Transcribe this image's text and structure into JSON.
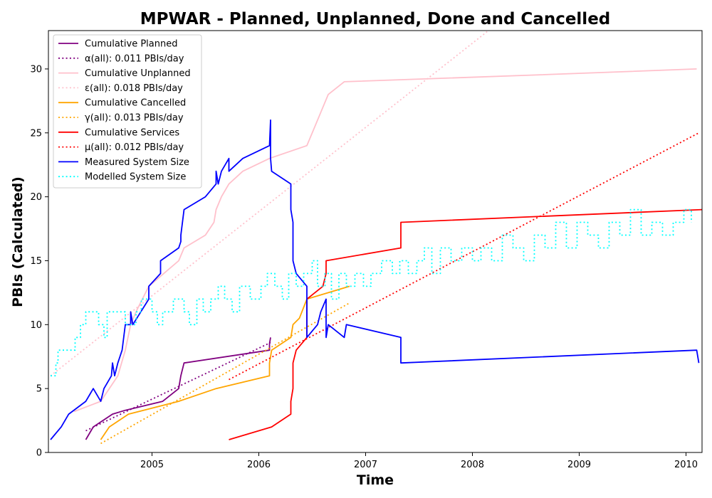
{
  "chart_data": {
    "type": "line",
    "title": "MPWAR - Planned, Unplanned, Done  and Cancelled",
    "xlabel": "Time",
    "ylabel": "PBIs (Calculated)",
    "xlim": [
      2004.03,
      2010.15
    ],
    "ylim": [
      0,
      33
    ],
    "xticks": [
      2005,
      2006,
      2007,
      2008,
      2009,
      2010
    ],
    "yticks": [
      0,
      5,
      10,
      15,
      20,
      25,
      30
    ],
    "grid": false,
    "legend_position": "top-left",
    "series": [
      {
        "name": "Cumulative Planned",
        "style": "solid",
        "color": "#800080",
        "x": [
          2004.38,
          2004.45,
          2004.63,
          2004.75,
          2005.1,
          2005.25,
          2005.27,
          2005.3,
          2006.1,
          2006.1,
          2006.11
        ],
        "y": [
          1,
          2,
          3,
          3.3,
          4,
          5,
          6,
          7,
          8,
          8.5,
          9
        ]
      },
      {
        "name": "α(all): 0.011 PBIs/day",
        "style": "dotted",
        "color": "#800080",
        "x": [
          2004.38,
          2006.11
        ],
        "y": [
          1.7,
          8.6
        ]
      },
      {
        "name": "Cumulative Unplanned",
        "style": "solid",
        "color": "#ffc0cb",
        "x": [
          2004.27,
          2004.52,
          2004.6,
          2004.68,
          2004.75,
          2004.8,
          2004.85,
          2004.97,
          2005.25,
          2005.3,
          2005.5,
          2005.58,
          2005.6,
          2005.65,
          2005.72,
          2005.85,
          2006.1,
          2006.45,
          2006.5,
          2006.55,
          2006.6,
          2006.65,
          2006.8,
          2008.5,
          2010.1
        ],
        "y": [
          3.2,
          4,
          5,
          6,
          8,
          10,
          11,
          13,
          15,
          16,
          17,
          18,
          19,
          20,
          21,
          22,
          23,
          24,
          25,
          26,
          27,
          28,
          29,
          29.5,
          30
        ]
      },
      {
        "name": "ε(all): 0.018 PBIs/day",
        "style": "dotted",
        "color": "#ffc0cb",
        "x": [
          2004.05,
          2008.15
        ],
        "y": [
          6,
          33
        ]
      },
      {
        "name": "Cumulative Cancelled",
        "style": "solid",
        "color": "#ffa500",
        "x": [
          2004.52,
          2004.6,
          2004.78,
          2005.25,
          2005.6,
          2006.1,
          2006.1,
          2006.12,
          2006.3,
          2006.32,
          2006.38,
          2006.45,
          2006.85
        ],
        "y": [
          1,
          2,
          3,
          4,
          5,
          6,
          7,
          8,
          9,
          10,
          10.5,
          12,
          13
        ]
      },
      {
        "name": "γ(all): 0.013 PBIs/day",
        "style": "dotted",
        "color": "#ffa500",
        "x": [
          2004.52,
          2006.85
        ],
        "y": [
          0.7,
          11.7
        ]
      },
      {
        "name": "Cumulative Services",
        "style": "solid",
        "color": "#ff0000",
        "x": [
          2005.72,
          2006.12,
          2006.3,
          2006.3,
          2006.32,
          2006.32,
          2006.35,
          2006.45,
          2006.45,
          2006.6,
          2006.63,
          2006.63,
          2007.33,
          2007.33,
          2010.15
        ],
        "y": [
          1,
          2,
          3,
          4,
          5,
          7,
          8,
          9,
          12,
          13,
          14,
          15,
          16,
          18,
          19
        ]
      },
      {
        "name": "μ(all): 0.012 PBIs/day",
        "style": "dotted",
        "color": "#ff0000",
        "x": [
          2005.72,
          2010.12
        ],
        "y": [
          5.7,
          25
        ]
      },
      {
        "name": "Measured System Size",
        "style": "solid",
        "color": "#0000ff",
        "x": [
          2004.05,
          2004.15,
          2004.22,
          2004.38,
          2004.45,
          2004.52,
          2004.55,
          2004.62,
          2004.63,
          2004.65,
          2004.68,
          2004.72,
          2004.75,
          2004.8,
          2004.8,
          2004.82,
          2004.97,
          2004.97,
          2005.08,
          2005.08,
          2005.25,
          2005.27,
          2005.27,
          2005.3,
          2005.5,
          2005.6,
          2005.6,
          2005.62,
          2005.65,
          2005.72,
          2005.72,
          2005.85,
          2006.1,
          2006.11,
          2006.11,
          2006.12,
          2006.3,
          2006.3,
          2006.32,
          2006.32,
          2006.35,
          2006.45,
          2006.45,
          2006.55,
          2006.58,
          2006.63,
          2006.63,
          2006.65,
          2006.8,
          2006.82,
          2007.33,
          2007.33,
          2010.1,
          2010.12
        ],
        "y": [
          1,
          2,
          3,
          4,
          5,
          4,
          5,
          6,
          7,
          6,
          7,
          8,
          10,
          10,
          11,
          10,
          12,
          13,
          14,
          15,
          16,
          16.5,
          17,
          19,
          20,
          21,
          22,
          21,
          22,
          23,
          22,
          23,
          24,
          26,
          23,
          22,
          21,
          19,
          18,
          15,
          14,
          13,
          9,
          10,
          11,
          12,
          9,
          10,
          9,
          10,
          9,
          7,
          8,
          7
        ]
      },
      {
        "name": "Modelled System Size",
        "style": "dotted",
        "color": "#00ffff",
        "step": true,
        "x": [
          2004.05,
          2004.1,
          2004.12,
          2004.28,
          2004.33,
          2004.38,
          2004.5,
          2004.55,
          2004.58,
          2004.75,
          2004.85,
          2004.9,
          2005.0,
          2005.05,
          2005.1,
          2005.2,
          2005.3,
          2005.35,
          2005.42,
          2005.48,
          2005.55,
          2005.62,
          2005.68,
          2005.75,
          2005.82,
          2005.92,
          2006.02,
          2006.08,
          2006.15,
          2006.22,
          2006.28,
          2006.35,
          2006.42,
          2006.5,
          2006.55,
          2006.62,
          2006.68,
          2006.75,
          2006.82,
          2006.9,
          2006.98,
          2007.05,
          2007.15,
          2007.25,
          2007.32,
          2007.4,
          2007.48,
          2007.55,
          2007.62,
          2007.7,
          2007.8,
          2007.9,
          2008.0,
          2008.08,
          2008.18,
          2008.28,
          2008.38,
          2008.48,
          2008.58,
          2008.68,
          2008.78,
          2008.88,
          2008.98,
          2009.08,
          2009.18,
          2009.28,
          2009.38,
          2009.48,
          2009.58,
          2009.68,
          2009.78,
          2009.88,
          2009.98,
          2010.05
        ],
        "y": [
          6,
          7,
          8,
          9,
          10,
          11,
          10,
          9,
          11,
          10,
          11,
          12,
          11,
          10,
          11,
          12,
          11,
          10,
          12,
          11,
          12,
          13,
          12,
          11,
          13,
          12,
          13,
          14,
          13,
          12,
          14,
          13,
          14,
          15,
          13,
          14,
          12,
          14,
          13,
          14,
          13,
          14,
          15,
          14,
          15,
          14,
          15,
          16,
          14,
          16,
          15,
          16,
          15,
          16,
          15,
          17,
          16,
          15,
          17,
          16,
          18,
          16,
          18,
          17,
          16,
          18,
          17,
          19,
          17,
          18,
          17,
          18,
          19,
          18
        ]
      }
    ]
  }
}
